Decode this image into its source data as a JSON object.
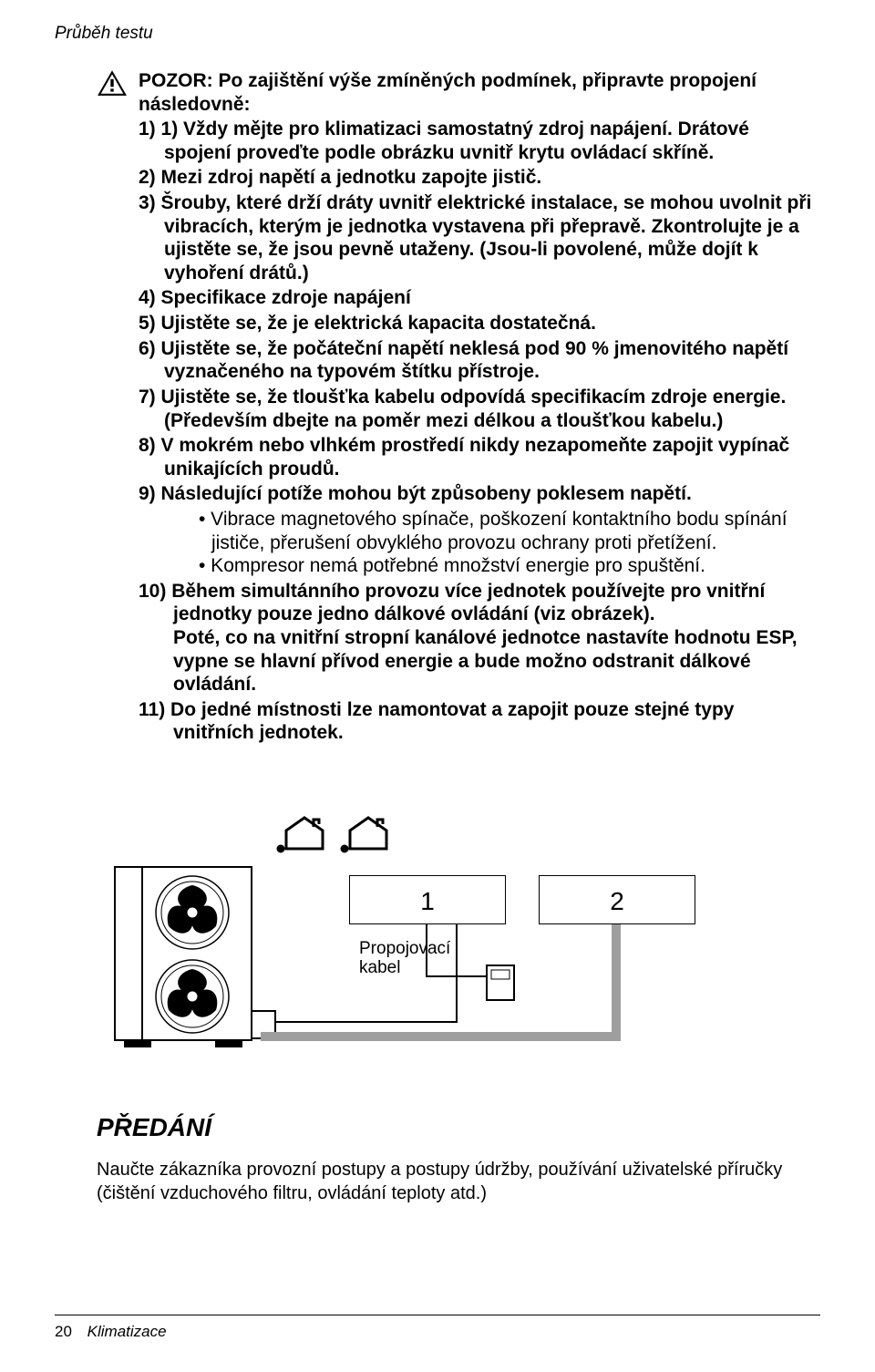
{
  "running_head": "Průběh testu",
  "notice": {
    "lead": "POZOR: Po zajištění výše zmíněných podmínek, připravte propojení následovně:",
    "items": [
      {
        "n": "1)",
        "text": "1) Vždy mějte pro klimatizaci samostatný zdroj napájení. Drátové spojení proveďte podle obrázku uvnitř krytu ovládací skříně."
      },
      {
        "n": "2)",
        "text": "Mezi zdroj napětí a jednotku zapojte jistič."
      },
      {
        "n": "3)",
        "text": "Šrouby, které drží dráty uvnitř elektrické instalace, se mohou uvolnit při vibracích, kterým je jednotka vystavena při přepravě. Zkontrolujte je a ujistěte se, že jsou pevně utaženy. (Jsou-li povolené, může dojít k vyhoření drátů.)"
      },
      {
        "n": "4)",
        "text": "Specifikace zdroje napájení"
      },
      {
        "n": "5)",
        "text": "Ujistěte se, že je elektrická kapacita dostatečná."
      },
      {
        "n": "6)",
        "text": "Ujistěte se, že počáteční napětí neklesá pod 90 % jmenovitého napětí vyznačeného na typovém štítku přístroje."
      },
      {
        "n": "7)",
        "text": "Ujistěte se, že tloušťka kabelu odpovídá specifikacím zdroje energie. (Především dbejte na poměr mezi délkou a tloušťkou kabelu.)"
      },
      {
        "n": "8)",
        "text": "V mokrém nebo vlhkém prostředí nikdy nezapomeňte zapojit vypínač unikajících proudů."
      },
      {
        "n": "9)",
        "text": "Následující potíže mohou být způsobeny poklesem napětí.",
        "subs": [
          "Vibrace magnetového spínače, poškození kontaktního bodu spínání jističe, přerušení obvyklého provozu ochrany proti přetížení.",
          "Kompresor nemá potřebné množství energie pro spuštění."
        ]
      },
      {
        "n": "10)",
        "text": "Během simultánního provozu více jednotek používejte pro vnitřní jednotky pouze jedno dálkové ovládání (viz obrázek).\nPoté, co na vnitřní stropní kanálové jednotce nastavíte hodnotu ESP, vypne se hlavní přívod energie a bude možno odstranit dálkové ovládání.",
        "two": true
      },
      {
        "n": "11)",
        "text": "Do jedné místnosti lze namontovat a zapojit pouze stejné typy vnitřních jednotek.",
        "two": true
      }
    ]
  },
  "diagram": {
    "unit1_label": "1",
    "unit2_label": "2",
    "cable_label": "Propojovací\nkabel"
  },
  "handover": {
    "title": "PŘEDÁNÍ",
    "text": "Naučte zákazníka provozní postupy a postupy údržby, používání uživatelské příručky (čištění vzduchového filtru, ovládání teploty atd.)"
  },
  "footer": {
    "page": "20",
    "title": "Klimatizace"
  }
}
